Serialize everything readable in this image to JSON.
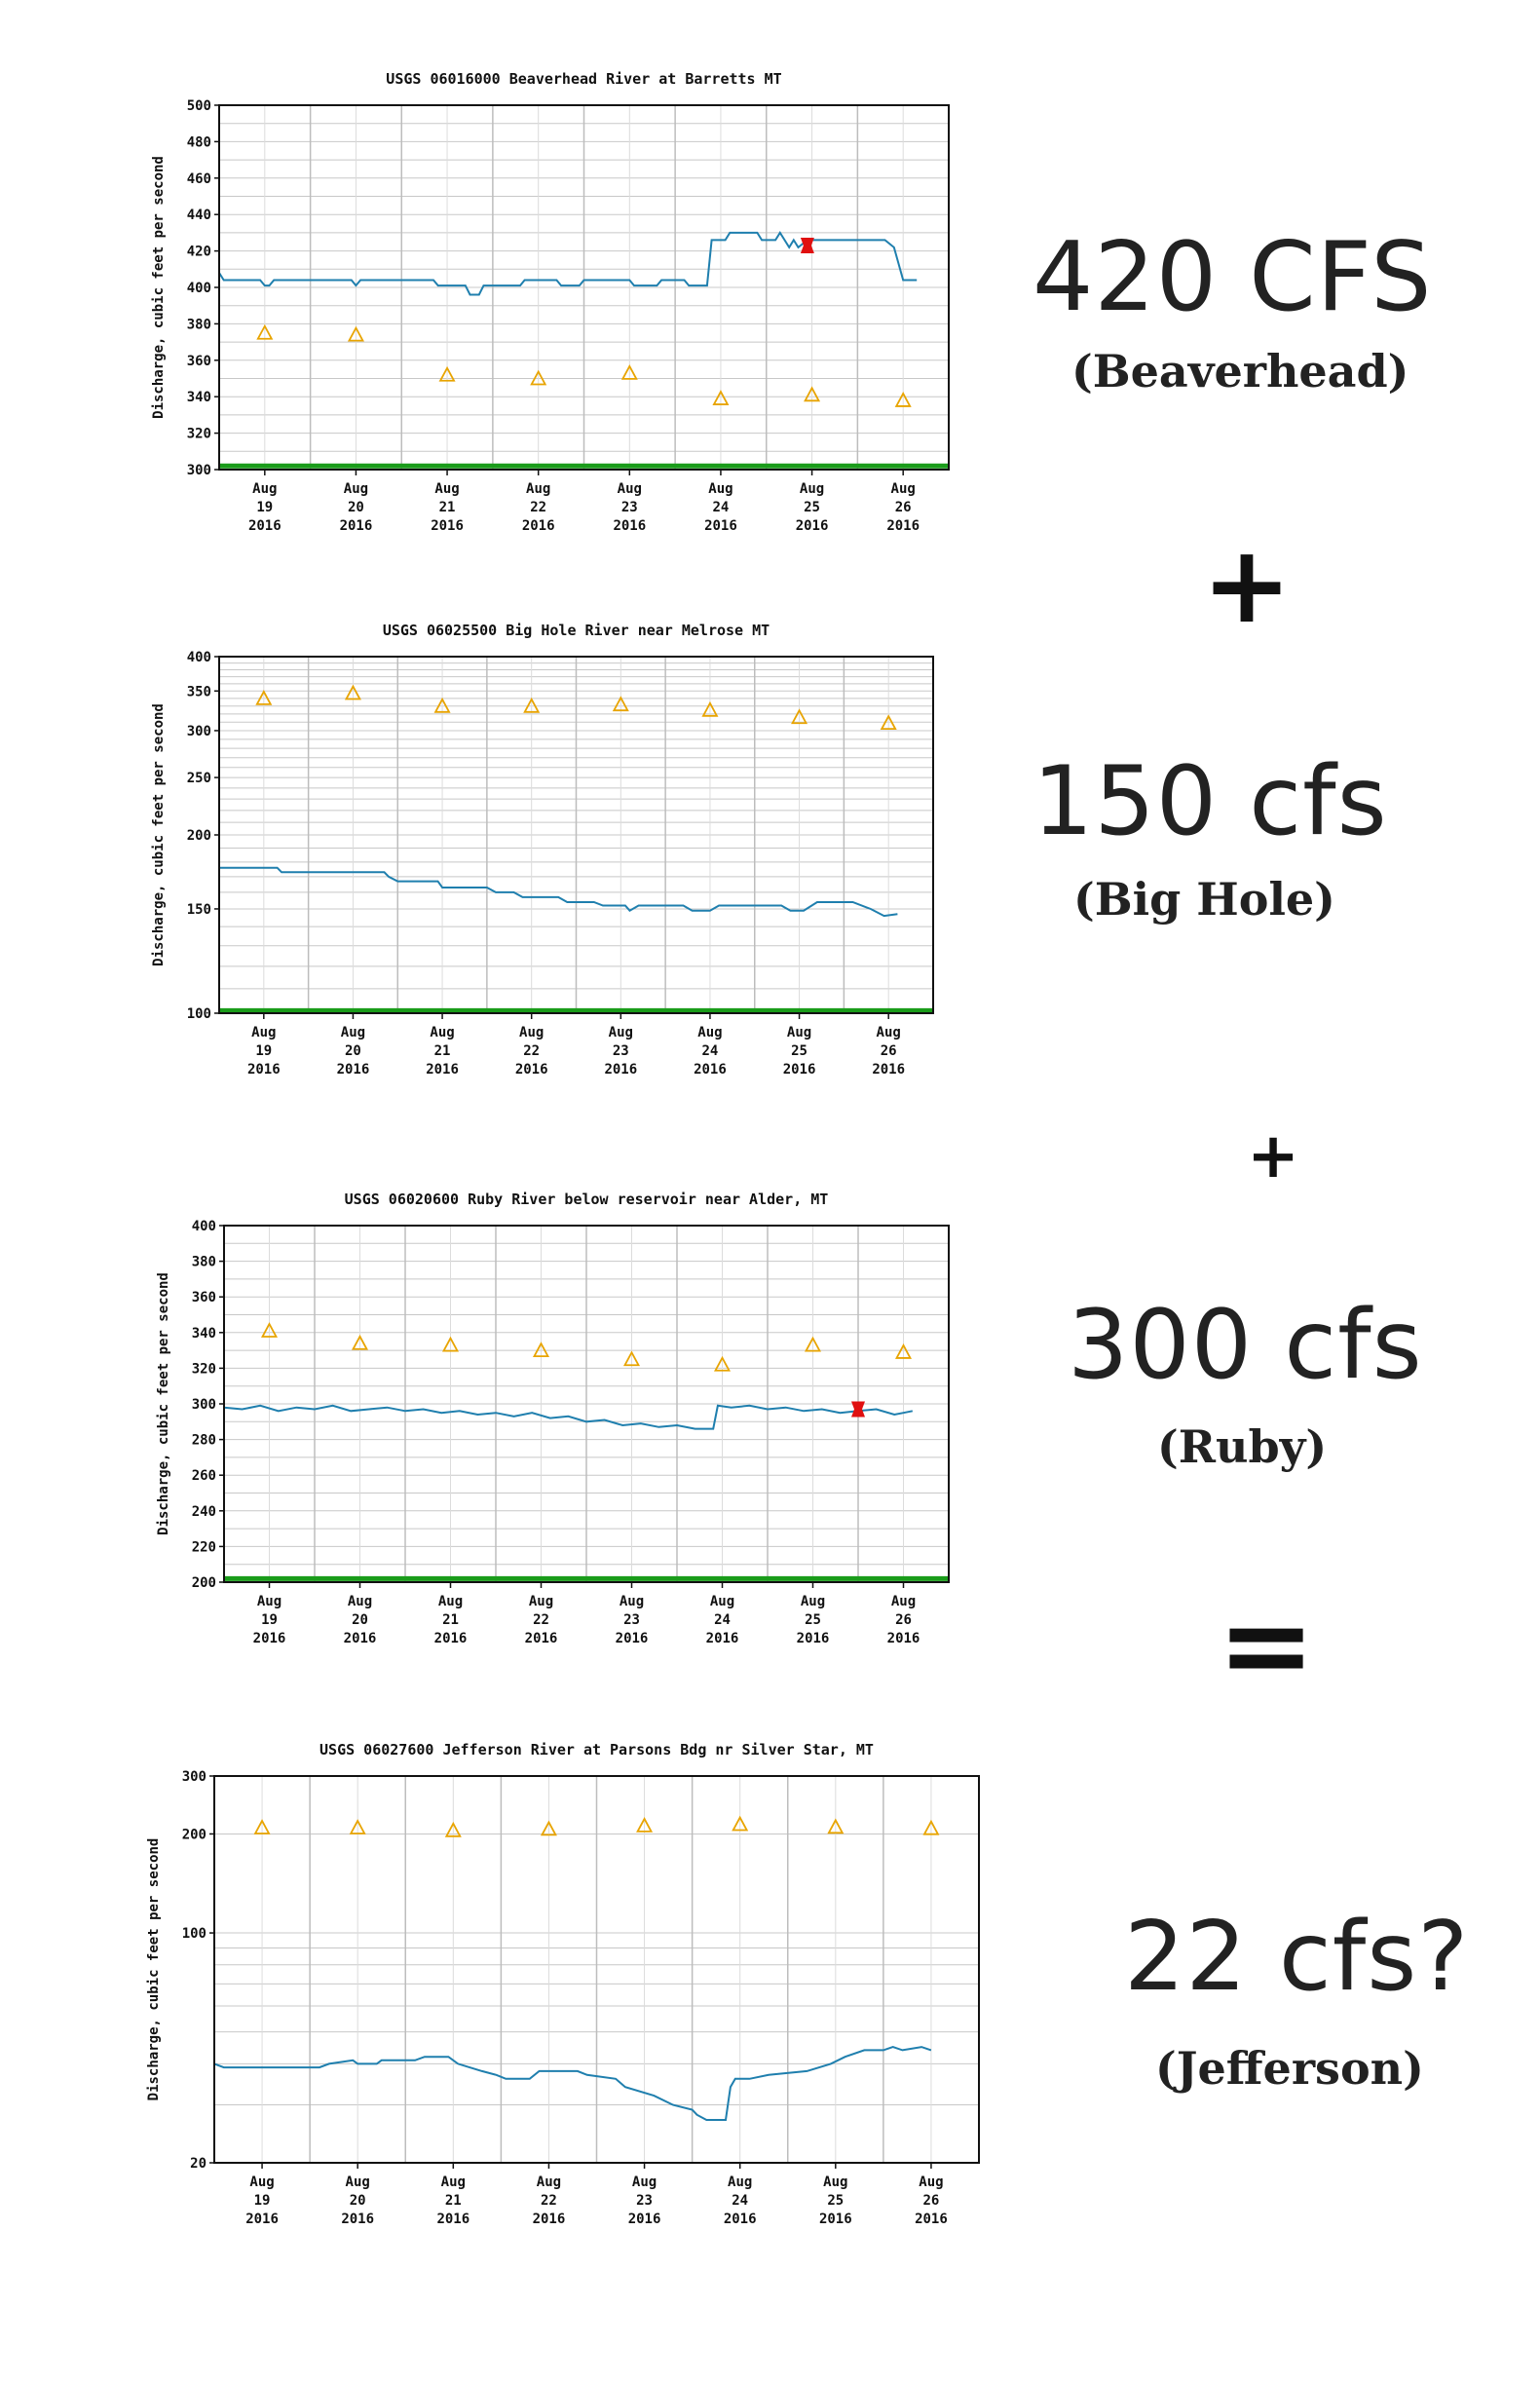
{
  "chart_data": [
    {
      "type": "line",
      "title": "USGS 06016000 Beaverhead River at Barretts MT",
      "ylabel": "Discharge, cubic feet per second",
      "ylim": [
        300,
        500
      ],
      "yticks": [
        300,
        320,
        340,
        360,
        380,
        400,
        420,
        440,
        460,
        480,
        500
      ],
      "scale": "linear",
      "x_ticks": [
        {
          "m": "Aug",
          "d": "19",
          "y": "2016"
        },
        {
          "m": "Aug",
          "d": "20",
          "y": "2016"
        },
        {
          "m": "Aug",
          "d": "21",
          "y": "2016"
        },
        {
          "m": "Aug",
          "d": "22",
          "y": "2016"
        },
        {
          "m": "Aug",
          "d": "23",
          "y": "2016"
        },
        {
          "m": "Aug",
          "d": "24",
          "y": "2016"
        },
        {
          "m": "Aug",
          "d": "25",
          "y": "2016"
        },
        {
          "m": "Aug",
          "d": "26",
          "y": "2016"
        }
      ],
      "series": [
        {
          "values": [
            [
              0,
              408
            ],
            [
              0.05,
              404
            ],
            [
              0.45,
              404
            ],
            [
              0.5,
              401
            ],
            [
              0.55,
              401
            ],
            [
              0.6,
              404
            ],
            [
              1.45,
              404
            ],
            [
              1.5,
              401
            ],
            [
              1.55,
              404
            ],
            [
              1.9,
              404
            ],
            [
              2.35,
              404
            ],
            [
              2.4,
              401
            ],
            [
              2.7,
              401
            ],
            [
              2.75,
              396
            ],
            [
              2.85,
              396
            ],
            [
              2.9,
              401
            ],
            [
              3.3,
              401
            ],
            [
              3.35,
              404
            ],
            [
              3.7,
              404
            ],
            [
              3.75,
              401
            ],
            [
              3.95,
              401
            ],
            [
              4.0,
              404
            ],
            [
              4.5,
              404
            ],
            [
              4.55,
              401
            ],
            [
              4.8,
              401
            ],
            [
              4.85,
              404
            ],
            [
              5.1,
              404
            ],
            [
              5.15,
              401
            ],
            [
              5.35,
              401
            ],
            [
              5.4,
              426
            ],
            [
              5.55,
              426
            ],
            [
              5.6,
              430
            ],
            [
              5.9,
              430
            ],
            [
              5.95,
              426
            ],
            [
              6.1,
              426
            ],
            [
              6.15,
              430
            ],
            [
              6.2,
              426
            ],
            [
              6.25,
              422
            ],
            [
              6.3,
              426
            ],
            [
              6.35,
              422
            ],
            [
              6.45,
              426
            ],
            [
              7.3,
              426
            ],
            [
              7.4,
              422
            ],
            [
              7.5,
              404
            ],
            [
              7.65,
              404
            ]
          ]
        }
      ],
      "median_markers": [
        [
          0.5,
          375
        ],
        [
          1.5,
          374
        ],
        [
          2.5,
          352
        ],
        [
          3.5,
          350
        ],
        [
          4.5,
          353
        ],
        [
          5.5,
          339
        ],
        [
          6.5,
          341
        ],
        [
          7.5,
          338
        ]
      ],
      "current_value": [
        6.45,
        423
      ],
      "threshold": 302
    },
    {
      "type": "line",
      "title": "USGS 06025500 Big Hole River near Melrose MT",
      "ylabel": "Discharge, cubic feet per second",
      "ylim": [
        100,
        400
      ],
      "yticks": [
        100,
        150,
        200,
        250,
        300,
        350,
        400
      ],
      "scale": "log",
      "x_ticks": [
        {
          "m": "Aug",
          "d": "19",
          "y": "2016"
        },
        {
          "m": "Aug",
          "d": "20",
          "y": "2016"
        },
        {
          "m": "Aug",
          "d": "21",
          "y": "2016"
        },
        {
          "m": "Aug",
          "d": "22",
          "y": "2016"
        },
        {
          "m": "Aug",
          "d": "23",
          "y": "2016"
        },
        {
          "m": "Aug",
          "d": "24",
          "y": "2016"
        },
        {
          "m": "Aug",
          "d": "25",
          "y": "2016"
        },
        {
          "m": "Aug",
          "d": "26",
          "y": "2016"
        }
      ],
      "series": [
        {
          "values": [
            [
              0,
              176
            ],
            [
              0.65,
              176
            ],
            [
              0.7,
              173
            ],
            [
              1.5,
              173
            ],
            [
              1.85,
              173
            ],
            [
              1.9,
              170
            ],
            [
              2.0,
              167
            ],
            [
              2.45,
              167
            ],
            [
              2.5,
              163
            ],
            [
              3.0,
              163
            ],
            [
              3.1,
              160
            ],
            [
              3.3,
              160
            ],
            [
              3.4,
              157
            ],
            [
              3.8,
              157
            ],
            [
              3.9,
              154
            ],
            [
              4.2,
              154
            ],
            [
              4.3,
              152
            ],
            [
              4.55,
              152
            ],
            [
              4.6,
              149
            ],
            [
              4.7,
              152
            ],
            [
              5.2,
              152
            ],
            [
              5.3,
              149
            ],
            [
              5.5,
              149
            ],
            [
              5.6,
              152
            ],
            [
              6.3,
              152
            ],
            [
              6.4,
              149
            ],
            [
              6.55,
              149
            ],
            [
              6.7,
              154
            ],
            [
              7.1,
              154
            ],
            [
              7.3,
              150
            ],
            [
              7.45,
              146
            ],
            [
              7.6,
              147
            ]
          ]
        }
      ],
      "median_markers": [
        [
          0.5,
          340
        ],
        [
          1.5,
          347
        ],
        [
          2.5,
          330
        ],
        [
          3.5,
          330
        ],
        [
          4.5,
          332
        ],
        [
          5.5,
          325
        ],
        [
          6.5,
          316
        ],
        [
          7.5,
          309
        ]
      ],
      "threshold": 101
    },
    {
      "type": "line",
      "title": "USGS 06020600 Ruby River below reservoir near Alder, MT",
      "ylabel": "Discharge, cubic feet per second",
      "ylim": [
        200,
        400
      ],
      "yticks": [
        200,
        220,
        240,
        260,
        280,
        300,
        320,
        340,
        360,
        380,
        400
      ],
      "scale": "linear",
      "x_ticks": [
        {
          "m": "Aug",
          "d": "19",
          "y": "2016"
        },
        {
          "m": "Aug",
          "d": "20",
          "y": "2016"
        },
        {
          "m": "Aug",
          "d": "21",
          "y": "2016"
        },
        {
          "m": "Aug",
          "d": "22",
          "y": "2016"
        },
        {
          "m": "Aug",
          "d": "23",
          "y": "2016"
        },
        {
          "m": "Aug",
          "d": "24",
          "y": "2016"
        },
        {
          "m": "Aug",
          "d": "25",
          "y": "2016"
        },
        {
          "m": "Aug",
          "d": "26",
          "y": "2016"
        }
      ],
      "series": [
        {
          "values": [
            [
              0,
              298
            ],
            [
              0.2,
              297
            ],
            [
              0.4,
              299
            ],
            [
              0.6,
              296
            ],
            [
              0.8,
              298
            ],
            [
              1.0,
              297
            ],
            [
              1.2,
              299
            ],
            [
              1.4,
              296
            ],
            [
              1.6,
              297
            ],
            [
              1.8,
              298
            ],
            [
              2.0,
              296
            ],
            [
              2.2,
              297
            ],
            [
              2.4,
              295
            ],
            [
              2.6,
              296
            ],
            [
              2.8,
              294
            ],
            [
              3.0,
              295
            ],
            [
              3.2,
              293
            ],
            [
              3.4,
              295
            ],
            [
              3.6,
              292
            ],
            [
              3.8,
              293
            ],
            [
              4.0,
              290
            ],
            [
              4.2,
              291
            ],
            [
              4.4,
              288
            ],
            [
              4.6,
              289
            ],
            [
              4.8,
              287
            ],
            [
              5.0,
              288
            ],
            [
              5.2,
              286
            ],
            [
              5.4,
              286
            ],
            [
              5.45,
              299
            ],
            [
              5.6,
              298
            ],
            [
              5.8,
              299
            ],
            [
              6.0,
              297
            ],
            [
              6.2,
              298
            ],
            [
              6.4,
              296
            ],
            [
              6.6,
              297
            ],
            [
              6.8,
              295
            ],
            [
              7.0,
              296
            ],
            [
              7.2,
              297
            ],
            [
              7.4,
              294
            ],
            [
              7.5,
              295
            ],
            [
              7.6,
              296
            ]
          ]
        }
      ],
      "median_markers": [
        [
          0.5,
          341
        ],
        [
          1.5,
          334
        ],
        [
          2.5,
          333
        ],
        [
          3.5,
          330
        ],
        [
          4.5,
          325
        ],
        [
          5.5,
          322
        ],
        [
          6.5,
          333
        ],
        [
          7.5,
          329
        ]
      ],
      "current_value": [
        7.0,
        297
      ],
      "threshold": 202
    },
    {
      "type": "line",
      "title": "USGS 06027600 Jefferson River at Parsons Bdg nr Silver Star, MT",
      "ylabel": "Discharge, cubic feet per second",
      "ylim": [
        20,
        300
      ],
      "yticks": [
        20,
        100,
        200,
        300
      ],
      "scale": "log",
      "x_ticks": [
        {
          "m": "Aug",
          "d": "19",
          "y": "2016"
        },
        {
          "m": "Aug",
          "d": "20",
          "y": "2016"
        },
        {
          "m": "Aug",
          "d": "21",
          "y": "2016"
        },
        {
          "m": "Aug",
          "d": "22",
          "y": "2016"
        },
        {
          "m": "Aug",
          "d": "23",
          "y": "2016"
        },
        {
          "m": "Aug",
          "d": "24",
          "y": "2016"
        },
        {
          "m": "Aug",
          "d": "25",
          "y": "2016"
        },
        {
          "m": "Aug",
          "d": "26",
          "y": "2016"
        }
      ],
      "series": [
        {
          "values": [
            [
              0,
              40
            ],
            [
              0.1,
              39
            ],
            [
              1.1,
              39
            ],
            [
              1.2,
              40
            ],
            [
              1.45,
              41
            ],
            [
              1.5,
              40
            ],
            [
              1.7,
              40
            ],
            [
              1.75,
              41
            ],
            [
              2.1,
              41
            ],
            [
              2.2,
              42
            ],
            [
              2.45,
              42
            ],
            [
              2.55,
              40
            ],
            [
              2.8,
              38
            ],
            [
              2.95,
              37
            ],
            [
              3.05,
              36
            ],
            [
              3.3,
              36
            ],
            [
              3.4,
              38
            ],
            [
              3.8,
              38
            ],
            [
              3.9,
              37
            ],
            [
              4.2,
              36
            ],
            [
              4.3,
              34
            ],
            [
              4.6,
              32
            ],
            [
              4.8,
              30
            ],
            [
              5.0,
              29
            ],
            [
              5.05,
              28
            ],
            [
              5.15,
              27
            ],
            [
              5.35,
              27
            ],
            [
              5.4,
              34
            ],
            [
              5.45,
              36
            ],
            [
              5.6,
              36
            ],
            [
              5.8,
              37
            ],
            [
              6.2,
              38
            ],
            [
              6.45,
              40
            ],
            [
              6.6,
              42
            ],
            [
              6.8,
              44
            ],
            [
              7.0,
              44
            ],
            [
              7.1,
              45
            ],
            [
              7.2,
              44
            ],
            [
              7.4,
              45
            ],
            [
              7.5,
              44
            ]
          ]
        }
      ],
      "median_markers": [
        [
          0.5,
          209
        ],
        [
          1.5,
          209
        ],
        [
          2.5,
          205
        ],
        [
          3.5,
          207
        ],
        [
          4.5,
          212
        ],
        [
          5.5,
          214
        ],
        [
          6.5,
          210
        ],
        [
          7.5,
          208
        ]
      ],
      "threshold": null
    }
  ],
  "annotations": {
    "beaverhead_value": "420 CFS",
    "beaverhead_label": "(Beaverhead)",
    "plus_one": "+",
    "bighole_value": "150 cfs",
    "bighole_label": "(Big Hole)",
    "plus_two": "+",
    "ruby_value": "300 cfs",
    "ruby_label": "(Ruby)",
    "equals": "=",
    "jefferson_value": "22 cfs?",
    "jefferson_label": "(Jefferson)"
  },
  "colors": {
    "series_line": "#1f7fae",
    "median_marker": "#e8a400",
    "current_value": "#e01010",
    "threshold": "#1a9c1a",
    "grid": "#c8c8c8"
  }
}
